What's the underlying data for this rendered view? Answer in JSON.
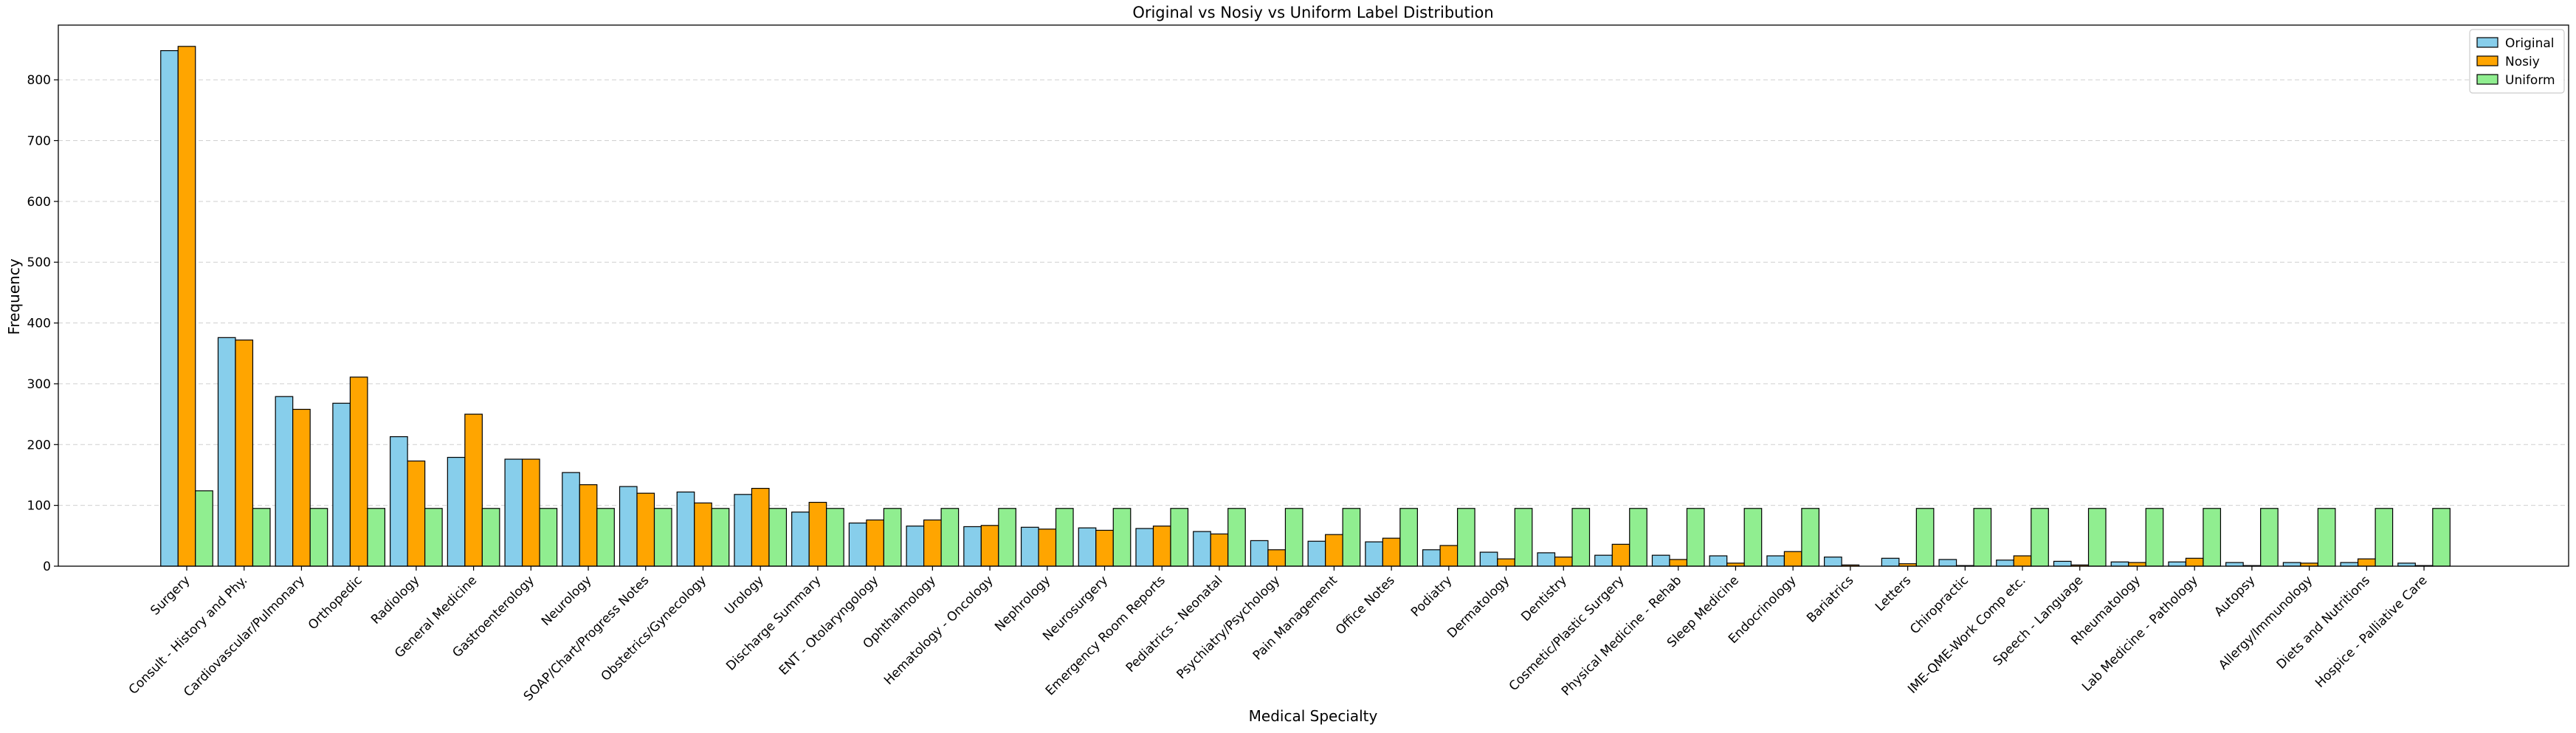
{
  "colors": {
    "Original": "#87ceeb",
    "Nosiy": "#ffa500",
    "Uniform": "#90ee90",
    "edge": "#000000",
    "grid": "#b0b0b0"
  },
  "chart_data": {
    "type": "bar",
    "title": "Original vs Nosiy vs Uniform Label Distribution",
    "xlabel": "Medical Specialty",
    "ylabel": "Frequency",
    "ylim": [
      0,
      890
    ],
    "yticks": [
      0,
      100,
      200,
      300,
      400,
      500,
      600,
      700,
      800
    ],
    "grid": "y-dashed",
    "legend_position": "top-right",
    "categories": [
      "Surgery",
      "Consult - History and Phy.",
      "Cardiovascular/Pulmonary",
      "Orthopedic",
      "Radiology",
      "General Medicine",
      "Gastroenterology",
      "Neurology",
      "SOAP/Chart/Progress Notes",
      "Obstetrics/Gynecology",
      "Urology",
      "Discharge Summary",
      "ENT - Otolaryngology",
      "Ophthalmology",
      "Hematology - Oncology",
      "Nephrology",
      "Neurosurgery",
      "Emergency Room Reports",
      "Pediatrics - Neonatal",
      "Psychiatry/Psychology",
      "Pain Management",
      "Office Notes",
      "Podiatry",
      "Dermatology",
      "Dentistry",
      "Cosmetic/Plastic Surgery",
      "Physical Medicine - Rehab",
      "Sleep Medicine",
      "Endocrinology",
      "Bariatrics",
      "Letters",
      "Chiropractic",
      "IME-QME-Work Comp etc.",
      "Speech - Language",
      "Rheumatology",
      "Lab Medicine - Pathology",
      "Autopsy",
      "Allergy/Immunology",
      "Diets and Nutritions",
      "Hospice - Palliative Care"
    ],
    "series": [
      {
        "name": "Original",
        "values": [
          848,
          376,
          279,
          268,
          213,
          179,
          176,
          154,
          131,
          122,
          118,
          89,
          71,
          66,
          65,
          64,
          63,
          62,
          57,
          42,
          41,
          40,
          27,
          23,
          22,
          18,
          18,
          17,
          17,
          15,
          13,
          11,
          10,
          8,
          7,
          7,
          6,
          6,
          6,
          5
        ]
      },
      {
        "name": "Nosiy",
        "values": [
          855,
          372,
          258,
          311,
          173,
          250,
          176,
          134,
          120,
          104,
          128,
          105,
          76,
          76,
          67,
          61,
          59,
          66,
          53,
          27,
          52,
          46,
          34,
          12,
          15,
          36,
          11,
          5,
          24,
          2,
          4,
          1,
          17,
          2,
          6,
          13,
          1,
          5,
          12,
          1
        ]
      },
      {
        "name": "Uniform",
        "values": [
          124,
          95,
          95,
          95,
          95,
          95,
          95,
          95,
          95,
          95,
          95,
          95,
          95,
          95,
          95,
          95,
          95,
          95,
          95,
          95,
          95,
          95,
          95,
          95,
          95,
          95,
          95,
          95,
          95,
          0,
          95,
          95,
          95,
          95,
          95,
          95,
          95,
          95,
          95,
          95
        ]
      }
    ]
  }
}
